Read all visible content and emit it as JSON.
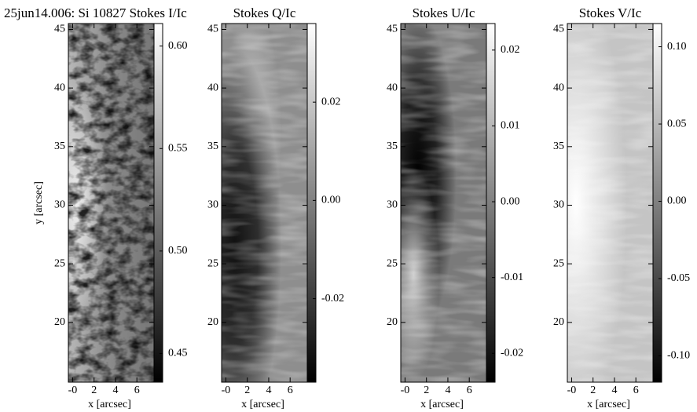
{
  "chart_data": [
    {
      "type": "image",
      "title": "25jun14.006: Si 10827 Stokes I/Ic",
      "xlabel": "x [arcsec]",
      "ylabel": "y [arcsec]",
      "xlim": [
        -0.4,
        7.6
      ],
      "ylim": [
        14.9,
        45.5
      ],
      "xticks": [
        {
          "value": 0,
          "label": "-0"
        },
        2,
        4,
        6
      ],
      "yticks": [
        20,
        25,
        30,
        35,
        40,
        45
      ],
      "colorbar": {
        "lim": [
          0.436,
          0.611
        ],
        "ticks": [
          {
            "value": 0.45,
            "label": "0.45"
          },
          {
            "value": 0.5,
            "label": "0.50"
          },
          0.55,
          {
            "value": 0.6,
            "label": "0.60"
          }
        ]
      }
    },
    {
      "type": "image",
      "title": "Stokes Q/Ic",
      "xlabel": "x [arcsec]",
      "xlim": [
        -0.4,
        7.6
      ],
      "ylim": [
        14.9,
        45.5
      ],
      "xticks": [
        {
          "value": 0,
          "label": "-0"
        },
        2,
        4,
        6
      ],
      "yticks": [
        20,
        25,
        30,
        35,
        40,
        45
      ],
      "colorbar": {
        "lim": [
          -0.037,
          0.036
        ],
        "ticks": [
          -0.02,
          {
            "value": 0,
            "label": "0.00"
          },
          0.02
        ]
      }
    },
    {
      "type": "image",
      "title": "Stokes U/Ic",
      "xlabel": "x [arcsec]",
      "xlim": [
        -0.4,
        7.6
      ],
      "ylim": [
        14.9,
        45.5
      ],
      "xticks": [
        {
          "value": 0,
          "label": "-0"
        },
        2,
        4,
        6
      ],
      "yticks": [
        20,
        25,
        30,
        35,
        40,
        45
      ],
      "colorbar": {
        "lim": [
          -0.0238,
          0.0235
        ],
        "ticks": [
          -0.02,
          -0.01,
          {
            "value": 0,
            "label": "0.00"
          },
          0.01,
          0.02
        ]
      }
    },
    {
      "type": "image",
      "title": "Stokes V/Ic",
      "xlabel": "x [arcsec]",
      "xlim": [
        -0.4,
        7.6
      ],
      "ylim": [
        14.9,
        45.5
      ],
      "xticks": [
        {
          "value": 0,
          "label": "-0"
        },
        2,
        4,
        6
      ],
      "yticks": [
        20,
        25,
        30,
        35,
        40,
        45
      ],
      "colorbar": {
        "lim": [
          -0.117,
          0.115
        ],
        "ticks": [
          {
            "value": -0.1,
            "label": "-0.10"
          },
          -0.05,
          {
            "value": 0,
            "label": "0.00"
          },
          0.05,
          {
            "value": 0.1,
            "label": "0.10"
          }
        ]
      }
    }
  ]
}
